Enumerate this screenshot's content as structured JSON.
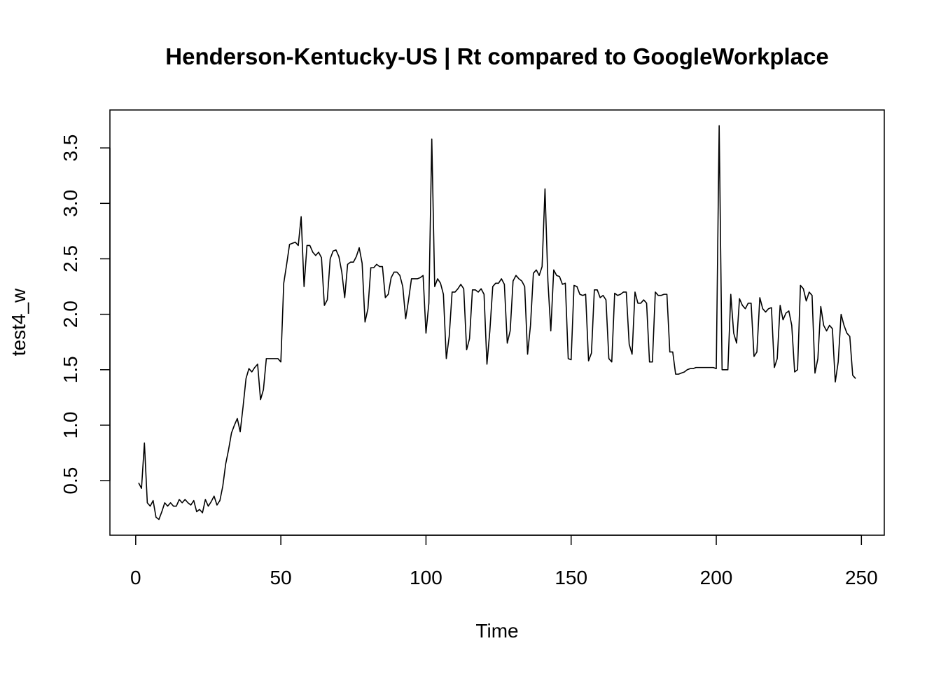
{
  "chart_data": {
    "type": "line",
    "title": "Henderson-Kentucky-US | Rt compared to GoogleWorkplace",
    "xlabel": "Time",
    "ylabel": "test4_w",
    "color": "#000000",
    "x": [
      1,
      2,
      3,
      4,
      5,
      6,
      7,
      8,
      9,
      10,
      11,
      12,
      13,
      14,
      15,
      16,
      17,
      18,
      19,
      20,
      21,
      22,
      23,
      24,
      25,
      26,
      27,
      28,
      29,
      30,
      31,
      32,
      33,
      34,
      35,
      36,
      37,
      38,
      39,
      40,
      41,
      42,
      43,
      44,
      45,
      46,
      47,
      48,
      49,
      50,
      51,
      52,
      53,
      54,
      55,
      56,
      57,
      58,
      59,
      60,
      61,
      62,
      63,
      64,
      65,
      66,
      67,
      68,
      69,
      70,
      71,
      72,
      73,
      74,
      75,
      76,
      77,
      78,
      79,
      80,
      81,
      82,
      83,
      84,
      85,
      86,
      87,
      88,
      89,
      90,
      91,
      92,
      93,
      94,
      95,
      96,
      97,
      98,
      99,
      100,
      101,
      102,
      103,
      104,
      105,
      106,
      107,
      108,
      109,
      110,
      111,
      112,
      113,
      114,
      115,
      116,
      117,
      118,
      119,
      120,
      121,
      122,
      123,
      124,
      125,
      126,
      127,
      128,
      129,
      130,
      131,
      132,
      133,
      134,
      135,
      136,
      137,
      138,
      139,
      140,
      141,
      142,
      143,
      144,
      145,
      146,
      147,
      148,
      149,
      150,
      151,
      152,
      153,
      154,
      155,
      156,
      157,
      158,
      159,
      160,
      161,
      162,
      163,
      164,
      165,
      166,
      167,
      168,
      169,
      170,
      171,
      172,
      173,
      174,
      175,
      176,
      177,
      178,
      179,
      180,
      181,
      182,
      183,
      184,
      185,
      186,
      187,
      188,
      189,
      190,
      191,
      192,
      193,
      194,
      195,
      196,
      197,
      198,
      199,
      200,
      201,
      202,
      203,
      204,
      205,
      206,
      207,
      208,
      209,
      210,
      211,
      212,
      213,
      214,
      215,
      216,
      217,
      218,
      219,
      220,
      221,
      222,
      223,
      224,
      225,
      226,
      227,
      228,
      229,
      230,
      231,
      232,
      233,
      234,
      235,
      236,
      237,
      238,
      239,
      240,
      241,
      242,
      243,
      244,
      245,
      246,
      247,
      248
    ],
    "values": [
      0.48,
      0.43,
      0.84,
      0.3,
      0.27,
      0.32,
      0.17,
      0.15,
      0.22,
      0.3,
      0.27,
      0.3,
      0.27,
      0.27,
      0.33,
      0.3,
      0.33,
      0.3,
      0.28,
      0.32,
      0.22,
      0.24,
      0.21,
      0.33,
      0.27,
      0.31,
      0.36,
      0.28,
      0.32,
      0.45,
      0.65,
      0.78,
      0.93,
      1.0,
      1.06,
      0.94,
      1.17,
      1.42,
      1.51,
      1.48,
      1.52,
      1.55,
      1.23,
      1.32,
      1.6,
      1.6,
      1.6,
      1.6,
      1.6,
      1.57,
      2.28,
      2.45,
      2.63,
      2.64,
      2.65,
      2.62,
      2.88,
      2.25,
      2.62,
      2.62,
      2.56,
      2.53,
      2.56,
      2.51,
      2.08,
      2.13,
      2.5,
      2.57,
      2.58,
      2.52,
      2.38,
      2.15,
      2.45,
      2.47,
      2.47,
      2.52,
      2.6,
      2.46,
      1.93,
      2.05,
      2.42,
      2.42,
      2.45,
      2.43,
      2.43,
      2.15,
      2.18,
      2.33,
      2.38,
      2.38,
      2.35,
      2.25,
      1.96,
      2.13,
      2.32,
      2.32,
      2.32,
      2.33,
      2.35,
      1.83,
      2.1,
      3.58,
      2.25,
      2.32,
      2.28,
      2.18,
      1.6,
      1.8,
      2.2,
      2.2,
      2.23,
      2.27,
      2.23,
      1.68,
      1.78,
      2.22,
      2.22,
      2.2,
      2.23,
      2.18,
      1.55,
      1.85,
      2.25,
      2.28,
      2.28,
      2.32,
      2.27,
      1.74,
      1.85,
      2.3,
      2.35,
      2.32,
      2.3,
      2.25,
      1.64,
      1.9,
      2.37,
      2.4,
      2.35,
      2.43,
      3.13,
      2.3,
      1.85,
      2.4,
      2.35,
      2.34,
      2.27,
      2.28,
      1.6,
      1.59,
      2.26,
      2.25,
      2.18,
      2.17,
      2.18,
      1.58,
      1.65,
      2.22,
      2.22,
      2.15,
      2.17,
      2.13,
      1.6,
      1.57,
      2.19,
      2.17,
      2.18,
      2.2,
      2.2,
      1.73,
      1.64,
      2.2,
      2.1,
      2.1,
      2.13,
      2.1,
      1.57,
      1.57,
      2.2,
      2.17,
      2.17,
      2.18,
      2.18,
      1.66,
      1.66,
      1.46,
      1.46,
      1.47,
      1.48,
      1.5,
      1.51,
      1.51,
      1.52,
      1.52,
      1.52,
      1.52,
      1.52,
      1.52,
      1.52,
      1.51,
      3.7,
      1.5,
      1.5,
      1.5,
      2.18,
      1.83,
      1.74,
      2.14,
      2.08,
      2.05,
      2.1,
      2.1,
      1.62,
      1.66,
      2.15,
      2.05,
      2.02,
      2.05,
      2.06,
      1.52,
      1.6,
      2.08,
      1.95,
      2.01,
      2.03,
      1.9,
      1.48,
      1.5,
      2.26,
      2.23,
      2.12,
      2.2,
      2.17,
      1.47,
      1.6,
      2.07,
      1.9,
      1.85,
      1.9,
      1.87,
      1.39,
      1.57,
      2.0,
      1.9,
      1.83,
      1.8,
      1.45,
      1.42
    ],
    "xlim": [
      -8.88,
      257.88
    ],
    "xticks": [
      0,
      50,
      100,
      150,
      200,
      250
    ],
    "ylim": [
      0.008,
      3.842
    ],
    "yticks": [
      0.5,
      {
        "value": 1,
        "label": "1.0"
      },
      1.5,
      {
        "value": 2,
        "label": "2.0"
      },
      2.5,
      {
        "value": 3,
        "label": "3.0"
      },
      3.5
    ]
  }
}
